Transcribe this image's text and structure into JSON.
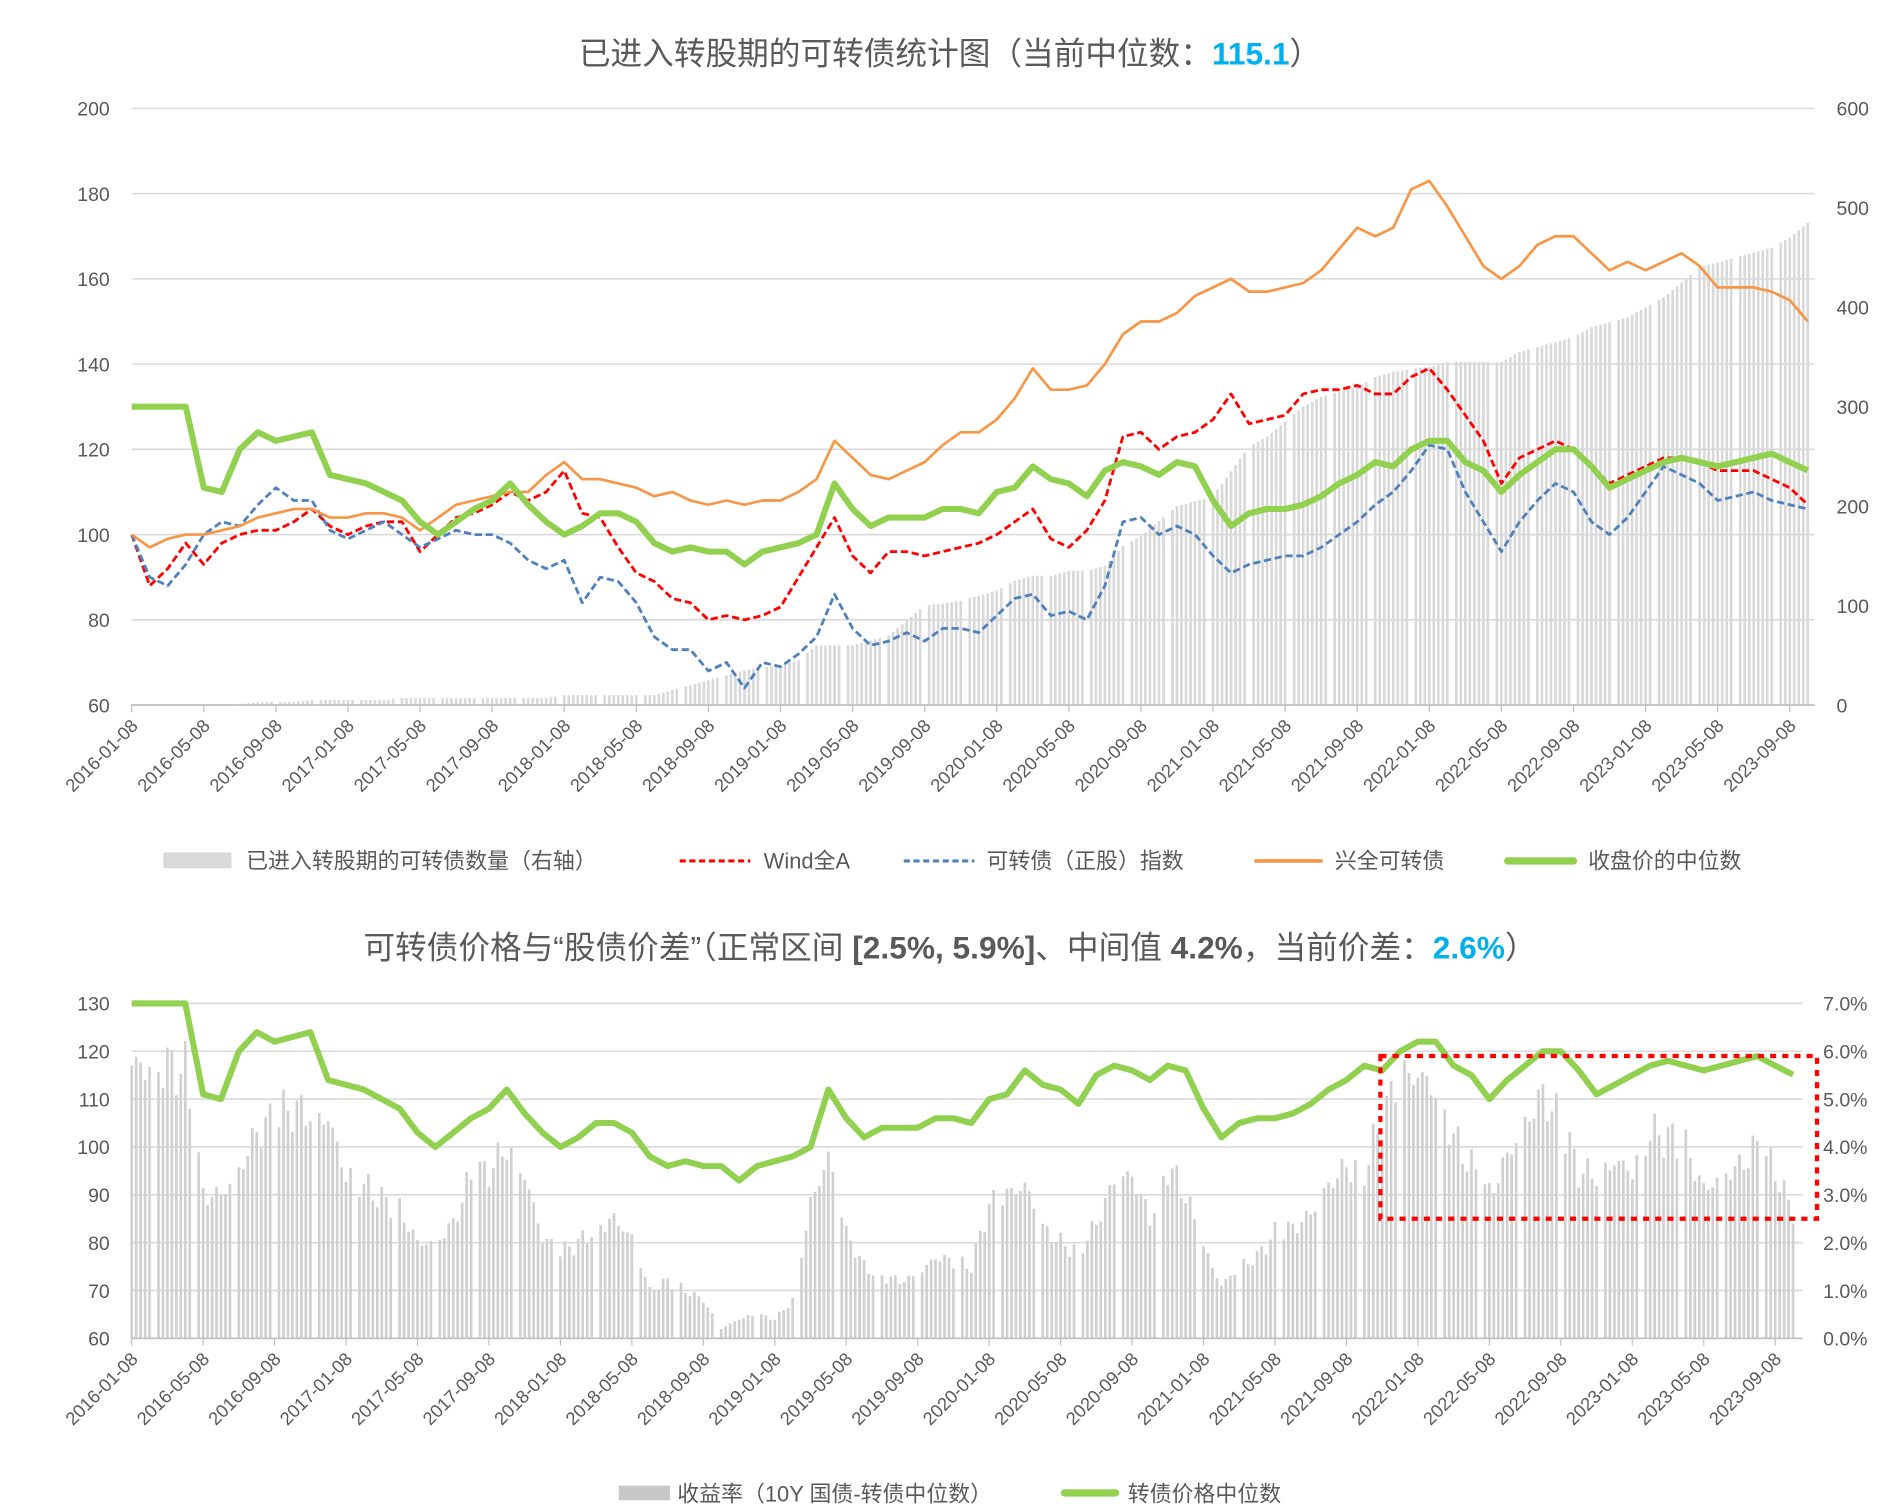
{
  "top_chart": {
    "title_main": "已进入转股期的可转债统计图（当前中位数：",
    "title_value": "115.1",
    "title_close": "）",
    "legend": {
      "count": "已进入转股期的可转债数量（右轴）",
      "wind": "Wind全A",
      "stock_index": "可转债（正股）指数",
      "xq_fund": "兴全可转债",
      "median_close": "收盘价的中位数"
    }
  },
  "bottom_chart": {
    "title_part1": "可转债价格与“股债价差”（正常区间 ",
    "title_range": "[2.5%, 5.9%]",
    "title_part2": "、中间值 ",
    "title_mid": "4.2%",
    "title_part3": "，当前价差：",
    "title_value": "2.6%",
    "title_close": "）",
    "legend": {
      "spread": "收益率（10Y 国债-转债中位数）",
      "price": "转债价格中位数"
    }
  },
  "colors": {
    "bars": "#d9d9d9",
    "wind": "#ff0000",
    "stock_index": "#4f81bd",
    "xq_fund": "#f79646",
    "median": "#92d050",
    "highlight": "#00B0F0",
    "box": "#ff0000"
  },
  "chart_data": [
    {
      "type": "line",
      "title": "已进入转股期的可转债统计图（当前中位数：115.1）",
      "x_start": "2016-01",
      "frequency": "monthly",
      "x_tick_labels": [
        "2016-01-08",
        "2016-05-08",
        "2016-09-08",
        "2017-01-08",
        "2017-05-08",
        "2017-09-08",
        "2018-01-08",
        "2018-05-08",
        "2018-09-08",
        "2019-01-08",
        "2019-05-08",
        "2019-09-08",
        "2020-01-08",
        "2020-05-08",
        "2020-09-08",
        "2021-01-08",
        "2021-05-08",
        "2021-09-08",
        "2022-01-08",
        "2022-05-08",
        "2022-09-08",
        "2023-01-08",
        "2023-05-08",
        "2023-09-08"
      ],
      "y_left": {
        "range": [
          60,
          200
        ],
        "ticks": [
          "200",
          "180",
          "160",
          "140",
          "120",
          "100",
          "80",
          "60"
        ]
      },
      "y_right": {
        "range": [
          0,
          600
        ],
        "ticks": [
          "600",
          "500",
          "400",
          "300",
          "200",
          "100",
          "0"
        ]
      },
      "grid": true,
      "legend_position": "bottom",
      "series": [
        {
          "name": "已进入转股期的可转债数量（右轴）",
          "kind": "bar",
          "axis": "right",
          "values": [
            1,
            1,
            1,
            1,
            1,
            1,
            1,
            3,
            3,
            3,
            5,
            5,
            5,
            5,
            5,
            7,
            7,
            7,
            7,
            7,
            7,
            7,
            7,
            7,
            10,
            10,
            10,
            10,
            10,
            10,
            15,
            20,
            25,
            30,
            35,
            38,
            40,
            45,
            60,
            60,
            60,
            65,
            70,
            85,
            100,
            102,
            105,
            110,
            115,
            125,
            130,
            130,
            135,
            135,
            140,
            160,
            170,
            185,
            200,
            205,
            210,
            235,
            260,
            270,
            285,
            300,
            310,
            315,
            320,
            330,
            335,
            338,
            340,
            345,
            345,
            345,
            345,
            355,
            360,
            365,
            370,
            380,
            385,
            390,
            400,
            410,
            425,
            440,
            445,
            450,
            455,
            460,
            470,
            485
          ]
        },
        {
          "name": "Wind全A",
          "kind": "dashed",
          "axis": "left",
          "values": [
            100,
            88,
            92,
            98,
            93,
            98,
            100,
            101,
            101,
            103,
            106,
            102,
            100,
            102,
            103,
            103,
            96,
            100,
            104,
            105,
            107,
            110,
            108,
            110,
            115,
            105,
            104,
            97,
            91,
            89,
            85,
            84,
            80,
            81,
            80,
            81,
            83,
            90,
            97,
            104,
            95,
            91,
            96,
            96,
            95,
            96,
            97,
            98,
            100,
            103,
            106,
            99,
            97,
            101,
            108,
            123,
            124,
            120,
            123,
            124,
            127,
            133,
            126,
            127,
            128,
            133,
            134,
            134,
            135,
            133,
            133,
            137,
            139,
            134,
            128,
            122,
            112,
            118,
            120,
            122,
            120,
            116,
            112,
            114,
            116,
            118,
            118,
            117,
            115,
            115,
            115,
            113,
            111,
            107
          ]
        },
        {
          "name": "可转债（正股）指数",
          "kind": "dashed",
          "axis": "left",
          "values": [
            100,
            90,
            88,
            93,
            100,
            103,
            102,
            107,
            111,
            108,
            108,
            101,
            99,
            101,
            103,
            100,
            97,
            99,
            101,
            100,
            100,
            98,
            94,
            92,
            94,
            84,
            90,
            89,
            84,
            76,
            73,
            73,
            68,
            70,
            64,
            70,
            69,
            72,
            76,
            86,
            78,
            74,
            75,
            77,
            75,
            78,
            78,
            77,
            81,
            85,
            86,
            81,
            82,
            80,
            88,
            103,
            104,
            100,
            102,
            100,
            95,
            91,
            93,
            94,
            95,
            95,
            97,
            100,
            103,
            107,
            110,
            115,
            121,
            120,
            110,
            103,
            96,
            103,
            108,
            112,
            110,
            103,
            100,
            104,
            110,
            116,
            114,
            112,
            108,
            109,
            110,
            108,
            107,
            106
          ]
        },
        {
          "name": "兴全可转债",
          "kind": "line",
          "axis": "left",
          "values": [
            100,
            97,
            99,
            100,
            100,
            101,
            102,
            104,
            105,
            106,
            106,
            104,
            104,
            105,
            105,
            104,
            101,
            104,
            107,
            108,
            109,
            110,
            110,
            114,
            117,
            113,
            113,
            112,
            111,
            109,
            110,
            108,
            107,
            108,
            107,
            108,
            108,
            110,
            113,
            122,
            118,
            114,
            113,
            115,
            117,
            121,
            124,
            124,
            127,
            132,
            139,
            134,
            134,
            135,
            140,
            147,
            150,
            150,
            152,
            156,
            158,
            160,
            157,
            157,
            158,
            159,
            162,
            167,
            172,
            170,
            172,
            181,
            183,
            177,
            170,
            163,
            160,
            163,
            168,
            170,
            170,
            166,
            162,
            164,
            162,
            164,
            166,
            163,
            158,
            158,
            158,
            157,
            155,
            150
          ]
        },
        {
          "name": "收盘价的中位数",
          "kind": "thick",
          "axis": "left",
          "values": [
            130,
            130,
            130,
            130,
            111,
            110,
            120,
            124,
            122,
            123,
            124,
            114,
            113,
            112,
            110,
            108,
            103,
            100,
            103,
            106,
            108,
            112,
            107,
            103,
            100,
            102,
            105,
            105,
            103,
            98,
            96,
            97,
            96,
            96,
            93,
            96,
            97,
            98,
            100,
            112,
            106,
            102,
            104,
            104,
            104,
            106,
            106,
            105,
            110,
            111,
            116,
            113,
            112,
            109,
            115,
            117,
            116,
            114,
            117,
            116,
            108,
            102,
            105,
            106,
            106,
            107,
            109,
            112,
            114,
            117,
            116,
            120,
            122,
            122,
            117,
            115,
            110,
            114,
            117,
            120,
            120,
            116,
            111,
            113,
            115,
            117,
            118,
            117,
            116,
            117,
            118,
            119,
            117,
            115.1
          ]
        }
      ]
    },
    {
      "type": "bar",
      "title": "可转债价格与“股债价差”（正常区间 [2.5%, 5.9%]、中间值 4.2%，当前价差：2.6%）",
      "x_start": "2016-01",
      "frequency": "monthly",
      "x_tick_labels": [
        "2016-01-08",
        "2016-05-08",
        "2016-09-08",
        "2017-01-08",
        "2017-05-08",
        "2017-09-08",
        "2018-01-08",
        "2018-05-08",
        "2018-09-08",
        "2019-01-08",
        "2019-05-08",
        "2019-09-08",
        "2020-01-08",
        "2020-05-08",
        "2020-09-08",
        "2021-01-08",
        "2021-05-08",
        "2021-09-08",
        "2022-01-08",
        "2022-05-08",
        "2022-09-08",
        "2023-01-08",
        "2023-05-08",
        "2023-09-08"
      ],
      "y_left": {
        "range": [
          60,
          130
        ],
        "ticks": [
          "130",
          "120",
          "110",
          "100",
          "90",
          "80",
          "70",
          "60"
        ]
      },
      "y_right": {
        "range": [
          0,
          7
        ],
        "ticks": [
          "7.0%",
          "6.0%",
          "5.0%",
          "4.0%",
          "3.0%",
          "2.0%",
          "1.0%",
          "0.0%"
        ]
      },
      "grid": true,
      "legend_position": "bottom",
      "annotation": {
        "kind": "dashed-box",
        "from": "2021-11",
        "range_percent": [
          2.5,
          5.9
        ]
      },
      "series": [
        {
          "name": "收益率（10Y 国债-转债中位数）",
          "kind": "bar",
          "axis": "right",
          "unit": "%",
          "values": [
            5.7,
            5.7,
            5.7,
            5.6,
            3.0,
            3.0,
            3.5,
            4.3,
            4.6,
            4.8,
            4.7,
            4.6,
            3.4,
            3.2,
            2.9,
            2.7,
            2.0,
            2.0,
            2.4,
            3.4,
            3.5,
            4.0,
            3.4,
            2.1,
            1.8,
            2.0,
            2.3,
            2.5,
            2.1,
            1.0,
            1.2,
            1.0,
            0.8,
            0.2,
            0.4,
            0.5,
            0.4,
            0.8,
            2.8,
            3.8,
            2.2,
            1.5,
            1.3,
            1.2,
            1.3,
            1.7,
            1.6,
            1.5,
            2.8,
            3.0,
            3.2,
            2.3,
            2.0,
            1.8,
            2.4,
            3.3,
            3.4,
            2.5,
            3.6,
            3.0,
            1.9,
            1.1,
            1.5,
            1.7,
            2.2,
            2.3,
            2.6,
            3.2,
            3.6,
            3.5,
            4.6,
            5.5,
            5.5,
            5.2,
            4.2,
            3.6,
            3.0,
            3.8,
            4.5,
            5.1,
            4.5,
            3.5,
            3.4,
            3.7,
            3.5,
            4.3,
            4.2,
            4.0,
            3.1,
            3.4,
            3.6,
            4.0,
            3.5,
            2.6
          ]
        },
        {
          "name": "转债价格中位数",
          "kind": "thick",
          "axis": "left",
          "values": [
            130,
            130,
            130,
            130,
            111,
            110,
            120,
            124,
            122,
            123,
            124,
            114,
            113,
            112,
            110,
            108,
            103,
            100,
            103,
            106,
            108,
            112,
            107,
            103,
            100,
            102,
            105,
            105,
            103,
            98,
            96,
            97,
            96,
            96,
            93,
            96,
            97,
            98,
            100,
            112,
            106,
            102,
            104,
            104,
            104,
            106,
            106,
            105,
            110,
            111,
            116,
            113,
            112,
            109,
            115,
            117,
            116,
            114,
            117,
            116,
            108,
            102,
            105,
            106,
            106,
            107,
            109,
            112,
            114,
            117,
            116,
            120,
            122,
            122,
            117,
            115,
            110,
            114,
            117,
            120,
            120,
            116,
            111,
            113,
            115,
            117,
            118,
            117,
            116,
            117,
            118,
            119,
            117,
            115.1
          ]
        }
      ]
    }
  ]
}
